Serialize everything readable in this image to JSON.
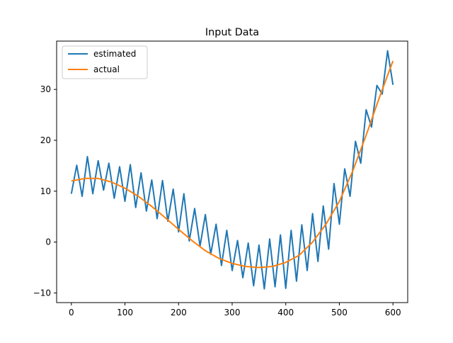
{
  "chart_data": {
    "type": "line",
    "title": "Input Data",
    "xlabel": "",
    "ylabel": "",
    "xlim": [
      -27.5,
      627.5
    ],
    "ylim": [
      -11.9,
      39.5
    ],
    "xticks": [
      0,
      100,
      200,
      300,
      400,
      500,
      600
    ],
    "yticks": [
      -10,
      0,
      10,
      20,
      30
    ],
    "grid": false,
    "legend": "upper-left",
    "series": [
      {
        "name": "estimated",
        "color": "#1f77b4",
        "x": [
          0,
          10,
          20,
          30,
          40,
          50,
          60,
          70,
          80,
          90,
          100,
          110,
          120,
          130,
          140,
          150,
          160,
          170,
          180,
          190,
          200,
          210,
          220,
          230,
          240,
          250,
          260,
          270,
          280,
          290,
          300,
          310,
          320,
          330,
          340,
          350,
          360,
          370,
          380,
          390,
          400,
          410,
          420,
          430,
          440,
          450,
          460,
          470,
          480,
          490,
          500,
          510,
          520,
          530,
          540,
          550,
          560,
          570,
          580,
          590,
          600
        ],
        "y": [
          9.5,
          15.1,
          9.0,
          16.8,
          9.5,
          16.0,
          10.2,
          15.5,
          8.6,
          14.8,
          8.0,
          15.2,
          6.8,
          13.6,
          6.1,
          12.2,
          4.6,
          12.1,
          4.1,
          10.4,
          2.0,
          9.5,
          0.2,
          6.6,
          -0.8,
          5.4,
          -2.4,
          3.5,
          -4.6,
          2.3,
          -5.6,
          0.3,
          -7.0,
          -0.2,
          -8.6,
          -0.6,
          -9.2,
          0.6,
          -8.8,
          1.4,
          -9.1,
          2.3,
          -7.7,
          3.4,
          -5.6,
          5.6,
          -3.8,
          7.1,
          -1.4,
          11.5,
          3.5,
          14.4,
          9.0,
          19.8,
          15.5,
          26.0,
          22.6,
          30.8,
          29.1,
          37.6,
          30.9
        ]
      },
      {
        "name": "actual",
        "color": "#ff7f0e",
        "x": [
          0,
          25,
          50,
          75,
          100,
          125,
          150,
          175,
          200,
          225,
          250,
          275,
          300,
          325,
          350,
          375,
          400,
          425,
          450,
          475,
          500,
          525,
          550,
          575,
          600
        ],
        "y": [
          12.0,
          12.5,
          12.5,
          11.8,
          10.6,
          9.0,
          7.0,
          4.8,
          2.5,
          0.3,
          -1.7,
          -3.2,
          -4.2,
          -4.8,
          -5.0,
          -4.8,
          -4.0,
          -2.6,
          0.0,
          3.5,
          8.0,
          14.0,
          21.0,
          28.5,
          35.6
        ]
      }
    ]
  }
}
